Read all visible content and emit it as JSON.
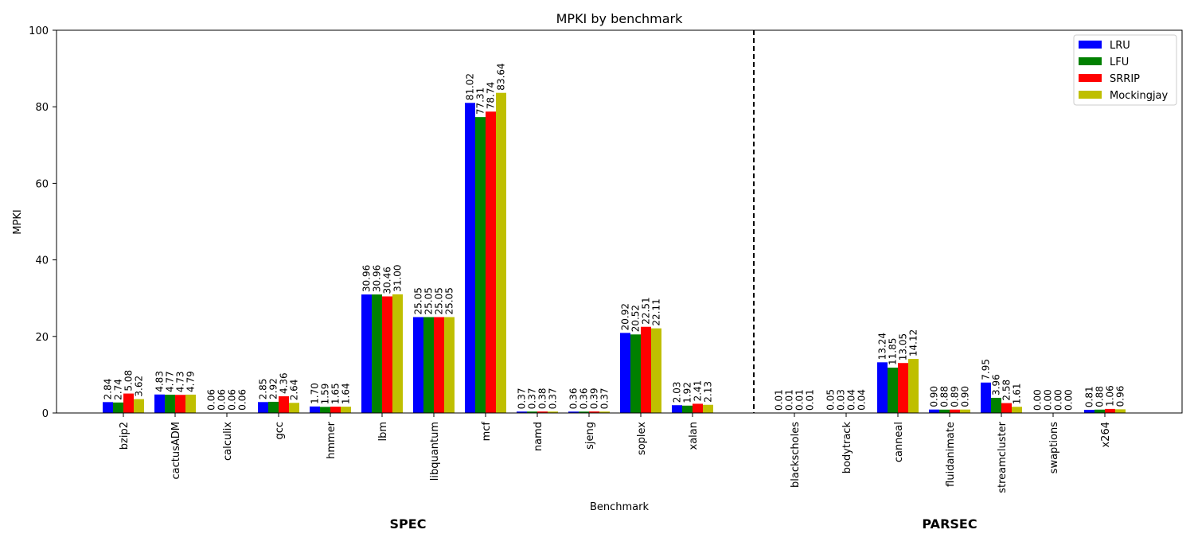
{
  "chart_data": {
    "type": "bar",
    "title": "MPKI by benchmark",
    "xlabel": "Benchmark",
    "ylabel": "MPKI",
    "ylim": [
      0,
      100
    ],
    "yticks": [
      0,
      20,
      40,
      60,
      80,
      100
    ],
    "grid": false,
    "legend_position": "top-right",
    "groups": [
      {
        "name": "SPEC",
        "categories": [
          "bzip2",
          "cactusADM",
          "calculix",
          "gcc",
          "hmmer",
          "lbm",
          "libquantum",
          "mcf",
          "namd",
          "sjeng",
          "soplex",
          "xalan"
        ]
      },
      {
        "name": "PARSEC",
        "categories": [
          "blackscholes",
          "bodytrack",
          "canneal",
          "fluidanimate",
          "streamcluster",
          "swaptions",
          "x264"
        ]
      }
    ],
    "categories": [
      "bzip2",
      "cactusADM",
      "calculix",
      "gcc",
      "hmmer",
      "lbm",
      "libquantum",
      "mcf",
      "namd",
      "sjeng",
      "soplex",
      "xalan",
      "blackscholes",
      "bodytrack",
      "canneal",
      "fluidanimate",
      "streamcluster",
      "swaptions",
      "x264"
    ],
    "series": [
      {
        "name": "LRU",
        "color": "#0000ff",
        "values": [
          2.84,
          4.83,
          0.06,
          2.85,
          1.7,
          30.96,
          25.05,
          81.02,
          0.37,
          0.36,
          20.92,
          2.03,
          0.01,
          0.05,
          13.24,
          0.9,
          7.95,
          0.0,
          0.81
        ],
        "labels": [
          "2.84",
          "4.83",
          "0.06",
          "2.85",
          "1.70",
          "30.96",
          "25.05",
          "81.02",
          "0.37",
          "0.36",
          "20.92",
          "2.03",
          "0.01",
          "0.05",
          "13.24",
          "0.90",
          "7.95",
          "0.00",
          "0.81"
        ]
      },
      {
        "name": "LFU",
        "color": "#008000",
        "values": [
          2.74,
          4.77,
          0.06,
          2.92,
          1.59,
          30.96,
          25.05,
          77.31,
          0.37,
          0.36,
          20.52,
          1.92,
          0.01,
          0.03,
          11.85,
          0.88,
          3.96,
          0.0,
          0.88
        ],
        "labels": [
          "2.74",
          "4.77",
          "0.06",
          "2.92",
          "1.59",
          "30.96",
          "25.05",
          "77.31",
          "0.37",
          "0.36",
          "20.52",
          "1.92",
          "0.01",
          "0.03",
          "11.85",
          "0.88",
          "3.96",
          "0.00",
          "0.88"
        ]
      },
      {
        "name": "SRRIP",
        "color": "#ff0000",
        "values": [
          5.08,
          4.73,
          0.06,
          4.36,
          1.65,
          30.46,
          25.05,
          78.74,
          0.38,
          0.39,
          22.51,
          2.41,
          0.01,
          0.04,
          13.05,
          0.89,
          2.58,
          0.0,
          1.06
        ],
        "labels": [
          "5.08",
          "4.73",
          "0.06",
          "4.36",
          "1.65",
          "30.46",
          "25.05",
          "78.74",
          "0.38",
          "0.39",
          "22.51",
          "2.41",
          "0.01",
          "0.04",
          "13.05",
          "0.89",
          "2.58",
          "0.00",
          "1.06"
        ]
      },
      {
        "name": "Mockingjay",
        "color": "#bfbf00",
        "values": [
          3.62,
          4.79,
          0.06,
          2.64,
          1.64,
          31.0,
          25.05,
          83.64,
          0.37,
          0.37,
          22.11,
          2.13,
          0.01,
          0.04,
          14.12,
          0.9,
          1.61,
          0.0,
          0.96
        ],
        "labels": [
          "3.62",
          "4.79",
          "0.06",
          "2.64",
          "1.64",
          "31.00",
          "25.05",
          "83.64",
          "0.37",
          "0.37",
          "22.11",
          "2.13",
          "0.01",
          "0.04",
          "14.12",
          "0.90",
          "1.61",
          "0.00",
          "0.96"
        ]
      }
    ]
  }
}
